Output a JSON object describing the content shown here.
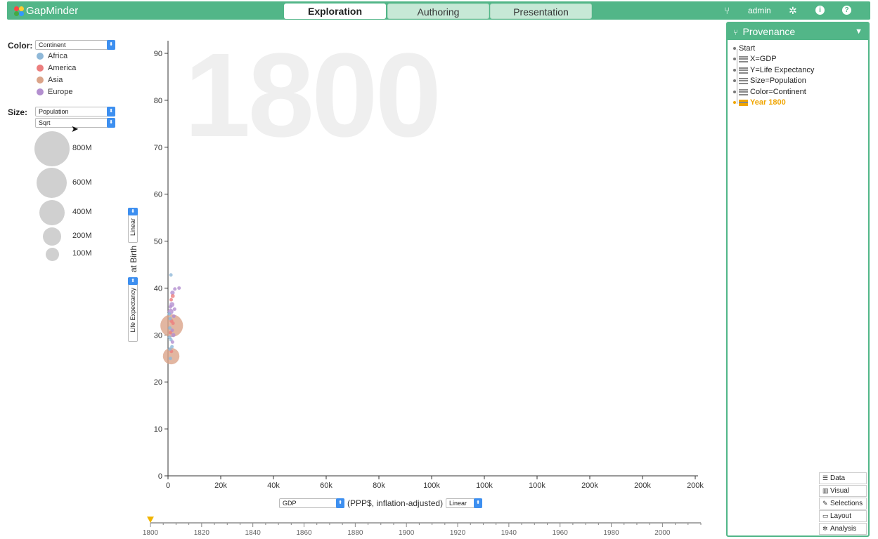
{
  "header": {
    "app_name": "GapMinder",
    "tabs": [
      {
        "label": "Exploration",
        "active": true
      },
      {
        "label": "Authoring",
        "active": false
      },
      {
        "label": "Presentation",
        "active": false
      }
    ],
    "user": "admin",
    "icons": [
      "provenance-icon",
      "gear-icon",
      "info-icon",
      "help-icon"
    ],
    "colors": {
      "accent": "#52b688"
    }
  },
  "legend": {
    "color_label": "Color:",
    "color_select": "Continent",
    "continents": [
      {
        "name": "Africa",
        "color": "#8fb8d8"
      },
      {
        "name": "America",
        "color": "#ec7e7e"
      },
      {
        "name": "Asia",
        "color": "#dba489"
      },
      {
        "name": "Europe",
        "color": "#b38fcf"
      }
    ],
    "size_label": "Size:",
    "size_select": "Population",
    "scale_select": "Sqrt",
    "sizes": [
      {
        "label": "800M",
        "value": 800
      },
      {
        "label": "600M",
        "value": 600
      },
      {
        "label": "400M",
        "value": 400
      },
      {
        "label": "200M",
        "value": 200
      },
      {
        "label": "100M",
        "value": 100
      }
    ]
  },
  "y_axis_controls": {
    "variable": "Life Expectancy",
    "suffix": "at Birth",
    "scale": "Linear"
  },
  "x_axis_controls": {
    "variable": "GDP",
    "suffix": "(PPP$, inflation-adjusted)",
    "scale": "Linear"
  },
  "chart_data": {
    "type": "scatter",
    "year_watermark": "1800",
    "xlabel": "GDP (PPP$, inflation-adjusted)",
    "ylabel": "Life Expectancy at Birth",
    "xlim": [
      0,
      200000
    ],
    "ylim": [
      0,
      90
    ],
    "x_ticks": [
      "0",
      "20k",
      "40k",
      "60k",
      "80k",
      "100k",
      "100k",
      "100k",
      "200k",
      "200k",
      "200k"
    ],
    "y_ticks": [
      0,
      10,
      20,
      30,
      40,
      50,
      60,
      70,
      80,
      90
    ],
    "points": [
      {
        "x": 1100,
        "y": 42.8,
        "pop": 1,
        "continent": "Africa"
      },
      {
        "x": 1400,
        "y": 32.0,
        "pop": 320,
        "continent": "Asia"
      },
      {
        "x": 1200,
        "y": 25.5,
        "pop": 170,
        "continent": "Asia"
      },
      {
        "x": 1700,
        "y": 39.0,
        "pop": 12,
        "continent": "Europe"
      },
      {
        "x": 2600,
        "y": 39.8,
        "pop": 3,
        "continent": "Europe"
      },
      {
        "x": 4200,
        "y": 40.0,
        "pop": 2,
        "continent": "Europe"
      },
      {
        "x": 1800,
        "y": 38.3,
        "pop": 10,
        "continent": "America"
      },
      {
        "x": 900,
        "y": 36.0,
        "pop": 8,
        "continent": "Europe"
      },
      {
        "x": 1500,
        "y": 36.5,
        "pop": 15,
        "continent": "Europe"
      },
      {
        "x": 1000,
        "y": 35.0,
        "pop": 20,
        "continent": "Europe"
      },
      {
        "x": 2200,
        "y": 34.0,
        "pop": 6,
        "continent": "Europe"
      },
      {
        "x": 800,
        "y": 33.5,
        "pop": 5,
        "continent": "Africa"
      },
      {
        "x": 1300,
        "y": 33.0,
        "pop": 9,
        "continent": "America"
      },
      {
        "x": 700,
        "y": 31.5,
        "pop": 4,
        "continent": "Africa"
      },
      {
        "x": 1600,
        "y": 31.0,
        "pop": 7,
        "continent": "Europe"
      },
      {
        "x": 2000,
        "y": 30.0,
        "pop": 11,
        "continent": "Europe"
      },
      {
        "x": 900,
        "y": 30.5,
        "pop": 3,
        "continent": "America"
      },
      {
        "x": 600,
        "y": 29.5,
        "pop": 2,
        "continent": "Africa"
      },
      {
        "x": 1100,
        "y": 29.0,
        "pop": 6,
        "continent": "Africa"
      },
      {
        "x": 1700,
        "y": 28.5,
        "pop": 5,
        "continent": "Europe"
      },
      {
        "x": 700,
        "y": 27.0,
        "pop": 3,
        "continent": "Africa"
      },
      {
        "x": 1300,
        "y": 26.5,
        "pop": 8,
        "continent": "America"
      },
      {
        "x": 900,
        "y": 25.0,
        "pop": 3,
        "continent": "Africa"
      },
      {
        "x": 1200,
        "y": 37.5,
        "pop": 4,
        "continent": "America"
      },
      {
        "x": 2500,
        "y": 35.5,
        "pop": 5,
        "continent": "Europe"
      },
      {
        "x": 500,
        "y": 34.5,
        "pop": 2,
        "continent": "Africa"
      },
      {
        "x": 1900,
        "y": 32.5,
        "pop": 6,
        "continent": "America"
      },
      {
        "x": 1500,
        "y": 27.5,
        "pop": 4,
        "continent": "Africa"
      }
    ]
  },
  "timeline": {
    "current_year": 1800,
    "range": [
      1800,
      2015
    ],
    "labels": [
      "1800",
      "1820",
      "1840",
      "1860",
      "1880",
      "1900",
      "1920",
      "1940",
      "1960",
      "1980",
      "2000"
    ]
  },
  "provenance": {
    "title": "Provenance",
    "items": [
      {
        "label": "Start",
        "type": "root",
        "current": false
      },
      {
        "label": "X=GDP",
        "type": "data",
        "current": false
      },
      {
        "label": "Y=Life Expectancy",
        "type": "data",
        "current": false
      },
      {
        "label": "Size=Population",
        "type": "data",
        "current": false
      },
      {
        "label": "Color=Continent",
        "type": "data",
        "current": false
      },
      {
        "label": "Year 1800",
        "type": "selection",
        "current": true
      }
    ],
    "filters": [
      {
        "label": "Data",
        "icon": "database-icon"
      },
      {
        "label": "Visual",
        "icon": "bar-chart-icon"
      },
      {
        "label": "Selections",
        "icon": "edit-icon"
      },
      {
        "label": "Layout",
        "icon": "monitor-icon"
      },
      {
        "label": "Analysis",
        "icon": "gear-icon"
      }
    ]
  }
}
